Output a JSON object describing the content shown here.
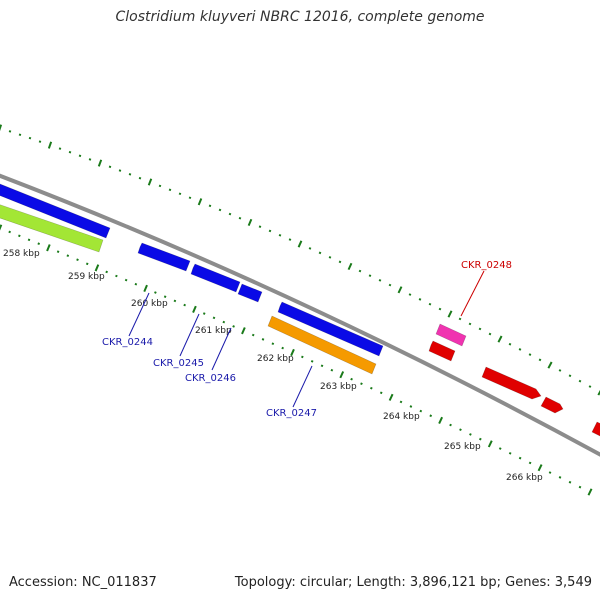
{
  "title": "Clostridium kluyveri NBRC 12016, complete genome",
  "footer": {
    "accession": "Accession: NC_011837",
    "summary": "Topology: circular; Length: 3,896,121 bp; Genes: 3,549"
  },
  "colors": {
    "backbone": "#8c8c8c",
    "tick_outer": "#1a7a1a",
    "tick_inner": "#1a7a1a",
    "forward_genes": "#0a0ae6",
    "reverse_genes": "#e00000",
    "lime_gene": "#a3e635",
    "orange_gene": "#f59a00",
    "pink_gene": "#f033b0",
    "forward_label": "#1a1aaa",
    "reverse_label": "#cc0000"
  },
  "kbp_labels": [
    "258 kbp",
    "259 kbp",
    "260 kbp",
    "261 kbp",
    "262 kbp",
    "263 kbp",
    "264 kbp",
    "265 kbp",
    "266 kbp"
  ],
  "gene_labels": [
    {
      "text": "CKR_0244",
      "color": "forward"
    },
    {
      "text": "CKR_0245",
      "color": "forward"
    },
    {
      "text": "CKR_0246",
      "color": "forward"
    },
    {
      "text": "CKR_0247",
      "color": "forward"
    },
    {
      "text": "CKR_0248",
      "color": "reverse"
    }
  ]
}
